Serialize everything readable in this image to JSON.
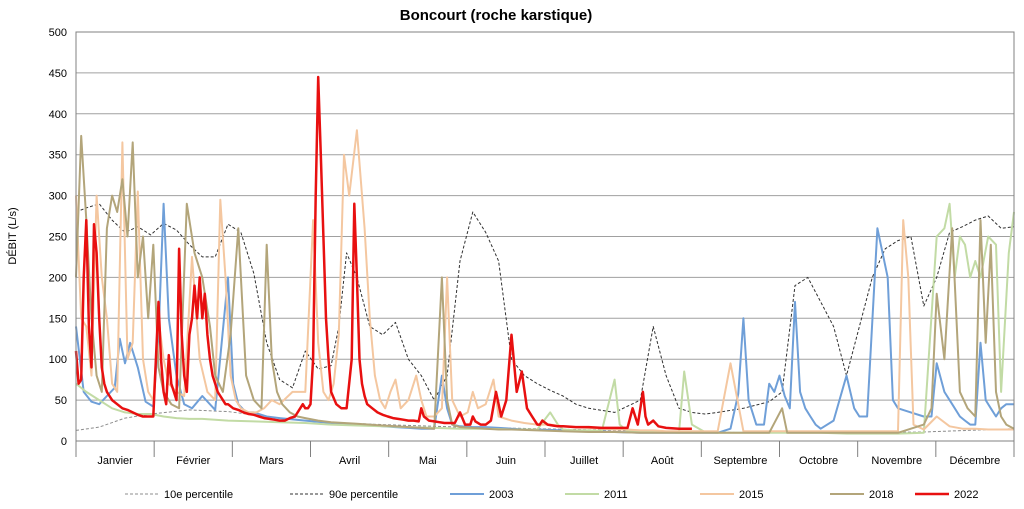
{
  "chart_data": {
    "type": "line",
    "title": "Boncourt (roche karstique)",
    "xlabel": "",
    "ylabel": "DÉBIT (L/s)",
    "ylim": [
      0,
      500
    ],
    "yticks": [
      0,
      50,
      100,
      150,
      200,
      250,
      300,
      350,
      400,
      450,
      500
    ],
    "xlim": [
      1,
      365
    ],
    "grid": true,
    "legend_position": "bottom",
    "months": [
      "Janvier",
      "Février",
      "Mars",
      "Avril",
      "Mai",
      "Juin",
      "Juillet",
      "Août",
      "Septembre",
      "Octobre",
      "Novembre",
      "Décembre"
    ],
    "series": [
      {
        "name": "10e percentile",
        "color": "#8c8c8c",
        "dash": "dashed",
        "width": 1,
        "x": [
          1,
          10,
          20,
          30,
          45,
          60,
          75,
          90,
          105,
          120,
          150,
          180,
          210,
          240,
          270,
          300,
          330,
          365
        ],
        "y": [
          13,
          17,
          28,
          33,
          38,
          36,
          30,
          25,
          22,
          20,
          17,
          15,
          13,
          11,
          10,
          10,
          11,
          15
        ]
      },
      {
        "name": "90e percentile",
        "color": "#303030",
        "dash": "dashed",
        "width": 1,
        "x": [
          1,
          5,
          10,
          15,
          20,
          25,
          30,
          35,
          40,
          45,
          50,
          55,
          60,
          65,
          70,
          75,
          80,
          85,
          90,
          95,
          100,
          103,
          106,
          110,
          115,
          120,
          125,
          130,
          135,
          140,
          145,
          150,
          155,
          160,
          165,
          170,
          175,
          180,
          185,
          190,
          195,
          200,
          210,
          220,
          225,
          230,
          235,
          240,
          245,
          250,
          260,
          270,
          275,
          280,
          285,
          290,
          295,
          300,
          305,
          310,
          315,
          320,
          325,
          330,
          335,
          340,
          345,
          350,
          355,
          360,
          365
        ],
        "y": [
          280,
          285,
          290,
          270,
          255,
          262,
          252,
          266,
          258,
          240,
          225,
          225,
          265,
          255,
          205,
          120,
          75,
          65,
          110,
          88,
          92,
          140,
          230,
          200,
          140,
          130,
          145,
          100,
          80,
          50,
          80,
          220,
          280,
          255,
          220,
          100,
          80,
          70,
          62,
          55,
          45,
          40,
          35,
          50,
          140,
          80,
          40,
          35,
          33,
          35,
          40,
          48,
          60,
          190,
          200,
          170,
          140,
          80,
          140,
          200,
          235,
          245,
          250,
          165,
          200,
          255,
          262,
          270,
          275,
          260,
          262
        ]
      },
      {
        "name": "2003",
        "color": "#6f9fd8",
        "dash": "solid",
        "width": 2,
        "x": [
          1,
          4,
          7,
          10,
          13,
          16,
          18,
          20,
          22,
          25,
          28,
          31,
          33,
          35,
          37,
          40,
          43,
          46,
          50,
          55,
          60,
          62,
          64,
          67,
          70,
          75,
          80,
          90,
          100,
          110,
          115,
          120,
          125,
          130,
          135,
          140,
          143,
          145,
          147,
          150,
          155,
          160,
          165,
          170,
          175,
          180,
          190,
          200,
          210,
          220,
          230,
          240,
          250,
          255,
          258,
          260,
          262,
          265,
          268,
          270,
          272,
          274,
          276,
          278,
          280,
          282,
          284,
          286,
          288,
          290,
          295,
          300,
          303,
          305,
          308,
          312,
          316,
          318,
          320,
          325,
          330,
          333,
          335,
          338,
          341,
          344,
          346,
          348,
          350,
          352,
          354,
          356,
          358,
          360,
          362,
          365
        ],
        "y": [
          140,
          60,
          48,
          45,
          55,
          65,
          125,
          95,
          120,
          90,
          48,
          42,
          130,
          290,
          150,
          80,
          45,
          40,
          55,
          38,
          200,
          70,
          45,
          35,
          35,
          30,
          28,
          25,
          22,
          20,
          20,
          18,
          17,
          16,
          15,
          15,
          80,
          40,
          20,
          18,
          17,
          17,
          16,
          15,
          14,
          14,
          13,
          12,
          11,
          10,
          10,
          10,
          10,
          15,
          58,
          150,
          50,
          20,
          20,
          70,
          60,
          80,
          55,
          40,
          170,
          60,
          40,
          30,
          20,
          15,
          25,
          80,
          40,
          30,
          30,
          260,
          200,
          50,
          40,
          35,
          30,
          30,
          95,
          60,
          45,
          30,
          25,
          20,
          20,
          120,
          50,
          40,
          30,
          40,
          45,
          45
        ]
      },
      {
        "name": "2011",
        "color": "#c2dba5",
        "dash": "solid",
        "width": 2,
        "x": [
          1,
          5,
          10,
          15,
          20,
          25,
          30,
          35,
          40,
          45,
          50,
          55,
          60,
          70,
          80,
          90,
          100,
          110,
          120,
          130,
          140,
          150,
          160,
          170,
          180,
          185,
          188,
          190,
          195,
          200,
          205,
          210,
          212,
          215,
          220,
          225,
          230,
          235,
          237,
          240,
          245,
          250,
          260,
          270,
          280,
          290,
          300,
          310,
          320,
          330,
          335,
          338,
          340,
          342,
          344,
          346,
          348,
          350,
          352,
          355,
          358,
          360,
          363,
          365
        ],
        "y": [
          70,
          60,
          50,
          40,
          35,
          33,
          33,
          30,
          28,
          27,
          27,
          26,
          25,
          24,
          23,
          22,
          20,
          19,
          18,
          17,
          16,
          15,
          15,
          14,
          14,
          35,
          20,
          14,
          13,
          13,
          12,
          75,
          20,
          12,
          12,
          11,
          11,
          10,
          85,
          20,
          11,
          10,
          10,
          10,
          10,
          10,
          9,
          9,
          9,
          10,
          250,
          260,
          290,
          200,
          250,
          240,
          200,
          220,
          200,
          250,
          240,
          60,
          230,
          280
        ]
      },
      {
        "name": "2015",
        "color": "#f4c7a0",
        "dash": "solid",
        "width": 2,
        "x": [
          1,
          3,
          5,
          7,
          9,
          11,
          13,
          15,
          17,
          19,
          21,
          23,
          25,
          27,
          29,
          31,
          33,
          35,
          37,
          40,
          43,
          46,
          49,
          52,
          55,
          57,
          59,
          61,
          63,
          65,
          68,
          71,
          74,
          77,
          80,
          85,
          90,
          93,
          95,
          97,
          99,
          101,
          103,
          105,
          107,
          110,
          113,
          115,
          117,
          119,
          121,
          123,
          125,
          127,
          130,
          133,
          135,
          137,
          140,
          143,
          145,
          147,
          150,
          153,
          155,
          157,
          160,
          163,
          165,
          170,
          175,
          180,
          185,
          190,
          195,
          200,
          205,
          210,
          215,
          220,
          225,
          230,
          235,
          240,
          245,
          250,
          255,
          260,
          270,
          280,
          290,
          300,
          310,
          320,
          322,
          324,
          326,
          330,
          335,
          340,
          345,
          350,
          355,
          360,
          365
        ],
        "y": [
          300,
          150,
          140,
          80,
          300,
          200,
          150,
          70,
          60,
          365,
          100,
          120,
          305,
          100,
          60,
          50,
          150,
          100,
          70,
          60,
          55,
          225,
          100,
          60,
          50,
          295,
          200,
          80,
          50,
          40,
          35,
          35,
          40,
          50,
          45,
          60,
          60,
          270,
          120,
          60,
          50,
          70,
          130,
          350,
          300,
          380,
          260,
          150,
          80,
          50,
          40,
          60,
          75,
          40,
          50,
          80,
          50,
          30,
          30,
          40,
          200,
          50,
          30,
          35,
          60,
          40,
          45,
          75,
          30,
          25,
          22,
          20,
          20,
          18,
          17,
          16,
          15,
          14,
          14,
          13,
          13,
          12,
          12,
          12,
          12,
          12,
          95,
          12,
          12,
          12,
          12,
          12,
          12,
          12,
          270,
          200,
          20,
          14,
          30,
          18,
          15,
          15,
          14,
          14,
          14
        ]
      },
      {
        "name": "2018",
        "color": "#b3a57a",
        "dash": "solid",
        "width": 2,
        "x": [
          1,
          3,
          5,
          7,
          9,
          11,
          13,
          15,
          17,
          19,
          21,
          23,
          25,
          27,
          29,
          31,
          33,
          35,
          38,
          41,
          44,
          47,
          50,
          53,
          55,
          58,
          61,
          64,
          67,
          70,
          73,
          75,
          77,
          79,
          81,
          84,
          87,
          90,
          95,
          100,
          105,
          110,
          115,
          120,
          125,
          130,
          135,
          140,
          143,
          145,
          147,
          150,
          155,
          160,
          165,
          170,
          180,
          190,
          200,
          210,
          220,
          230,
          240,
          250,
          260,
          270,
          275,
          277,
          280,
          290,
          300,
          310,
          320,
          325,
          330,
          333,
          335,
          338,
          341,
          344,
          347,
          350,
          352,
          354,
          356,
          358,
          360,
          362,
          365
        ],
        "y": [
          200,
          373,
          270,
          150,
          80,
          60,
          260,
          300,
          280,
          320,
          250,
          365,
          200,
          250,
          150,
          240,
          90,
          60,
          45,
          40,
          290,
          230,
          200,
          140,
          80,
          60,
          130,
          260,
          80,
          50,
          40,
          240,
          100,
          60,
          45,
          35,
          30,
          28,
          25,
          23,
          22,
          21,
          20,
          19,
          18,
          17,
          16,
          15,
          200,
          50,
          20,
          17,
          16,
          15,
          14,
          14,
          13,
          12,
          11,
          11,
          10,
          10,
          10,
          10,
          10,
          10,
          40,
          10,
          10,
          10,
          10,
          10,
          10,
          15,
          20,
          40,
          180,
          100,
          260,
          60,
          40,
          30,
          270,
          120,
          240,
          60,
          30,
          20,
          15
        ]
      },
      {
        "name": "2022",
        "color": "#e81010",
        "dash": "solid",
        "width": 2.5,
        "x": [
          1,
          2,
          3,
          4,
          5,
          6,
          7,
          8,
          9,
          10,
          11,
          12,
          13,
          14,
          15,
          17,
          19,
          21,
          23,
          25,
          27,
          29,
          31,
          33,
          34,
          35,
          36,
          37,
          38,
          39,
          40,
          41,
          42,
          43,
          44,
          45,
          46,
          47,
          48,
          49,
          50,
          51,
          52,
          53,
          54,
          55,
          56,
          57,
          58,
          59,
          60,
          62,
          64,
          66,
          68,
          70,
          72,
          74,
          76,
          78,
          80,
          82,
          84,
          86,
          88,
          89,
          90,
          91,
          92,
          93,
          94,
          95,
          96,
          97,
          98,
          99,
          100,
          102,
          104,
          106,
          108,
          109,
          110,
          111,
          112,
          113,
          114,
          116,
          118,
          120,
          122,
          124,
          126,
          128,
          130,
          132,
          134,
          135,
          136,
          138,
          140,
          142,
          144,
          146,
          148,
          150,
          152,
          154,
          155,
          156,
          158,
          160,
          162,
          164,
          166,
          168,
          170,
          172,
          174,
          176,
          178,
          180,
          181,
          182,
          184,
          186,
          188,
          190,
          195,
          200,
          205,
          210,
          213,
          215,
          217,
          219,
          221,
          222,
          223,
          225,
          227,
          230,
          235,
          240
        ],
        "y": [
          110,
          70,
          75,
          200,
          270,
          140,
          90,
          265,
          230,
          150,
          90,
          70,
          60,
          55,
          50,
          45,
          40,
          38,
          35,
          32,
          30,
          30,
          30,
          170,
          100,
          60,
          45,
          105,
          70,
          60,
          50,
          235,
          130,
          80,
          60,
          130,
          150,
          190,
          150,
          200,
          150,
          180,
          130,
          100,
          80,
          70,
          60,
          55,
          50,
          45,
          45,
          40,
          38,
          35,
          33,
          32,
          30,
          28,
          27,
          26,
          25,
          25,
          28,
          30,
          40,
          45,
          40,
          40,
          45,
          100,
          300,
          445,
          350,
          250,
          150,
          100,
          60,
          45,
          40,
          40,
          100,
          290,
          200,
          100,
          70,
          55,
          45,
          40,
          35,
          32,
          30,
          28,
          27,
          26,
          25,
          25,
          24,
          40,
          30,
          25,
          24,
          23,
          22,
          22,
          22,
          35,
          20,
          20,
          30,
          24,
          20,
          20,
          25,
          60,
          30,
          50,
          130,
          60,
          85,
          40,
          30,
          20,
          20,
          25,
          20,
          19,
          18,
          18,
          17,
          17,
          16,
          16,
          16,
          16,
          40,
          20,
          60,
          30,
          20,
          25,
          18,
          16,
          15,
          15
        ]
      }
    ]
  }
}
